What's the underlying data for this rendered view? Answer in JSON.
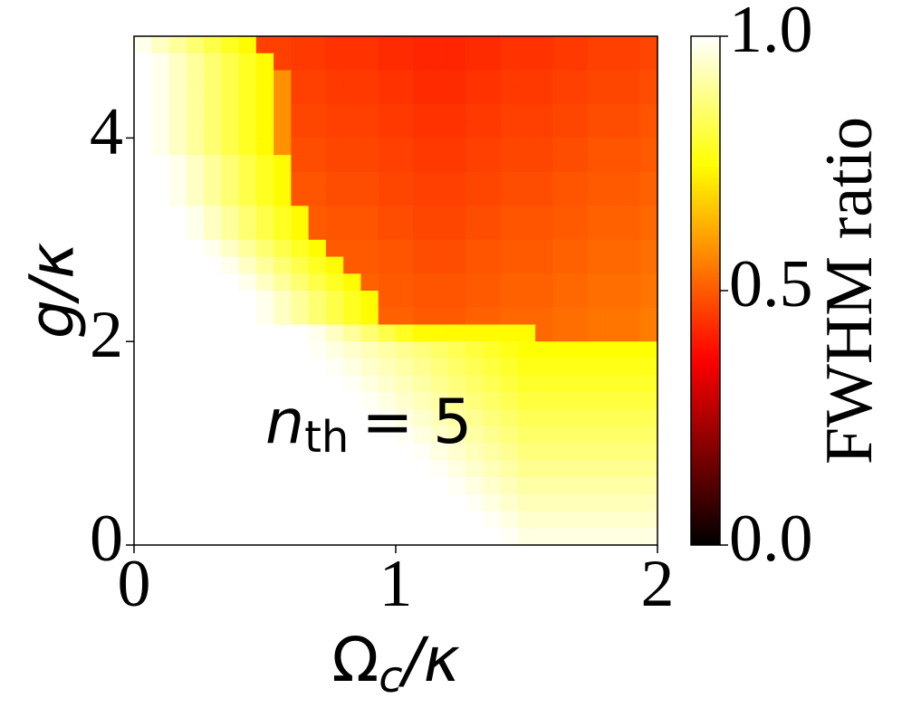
{
  "chart_data": {
    "type": "heatmap",
    "xlabel": {
      "symbol": "Ω",
      "subscript": "c",
      "rest": "/κ"
    },
    "ylabel": "g/κ",
    "annotation": {
      "symbol": "n",
      "subscript": "th",
      "rest": "= 5"
    },
    "colorbar_label": "FWHM ratio",
    "colormap": "hot",
    "xlim": [
      0,
      2
    ],
    "ylim": [
      0,
      5
    ],
    "xticks": [
      0,
      1,
      2
    ],
    "yticks": [
      0,
      2,
      4
    ],
    "clim": [
      0,
      1
    ],
    "cticks": [
      {
        "value": 0,
        "label": "0.0"
      },
      {
        "value": 0.5,
        "label": "0.5"
      },
      {
        "value": 1,
        "label": "1.0"
      }
    ],
    "z": [
      [
        0.98,
        0.94,
        0.9,
        0.86,
        0.82,
        0.78,
        0.74,
        0.46,
        0.46,
        0.45,
        0.45,
        0.44,
        0.44,
        0.44,
        0.43,
        0.43,
        0.42,
        0.42,
        0.42,
        0.43,
        0.43,
        0.44,
        0.44,
        0.44,
        0.45,
        0.45,
        0.46,
        0.46,
        0.46,
        0.47
      ],
      [
        1,
        0.98,
        0.94,
        0.9,
        0.86,
        0.82,
        0.78,
        0.74,
        0.46,
        0.45,
        0.45,
        0.44,
        0.44,
        0.44,
        0.43,
        0.43,
        0.42,
        0.42,
        0.42,
        0.43,
        0.43,
        0.44,
        0.44,
        0.44,
        0.45,
        0.45,
        0.46,
        0.46,
        0.46,
        0.47
      ],
      [
        1,
        0.98,
        0.94,
        0.9,
        0.86,
        0.82,
        0.78,
        0.74,
        0.58,
        0.46,
        0.46,
        0.45,
        0.45,
        0.45,
        0.44,
        0.44,
        0.43,
        0.43,
        0.43,
        0.44,
        0.44,
        0.45,
        0.45,
        0.45,
        0.46,
        0.46,
        0.47,
        0.47,
        0.47,
        0.48
      ],
      [
        1,
        0.98,
        0.94,
        0.9,
        0.86,
        0.82,
        0.78,
        0.74,
        0.58,
        0.46,
        0.46,
        0.45,
        0.45,
        0.45,
        0.44,
        0.44,
        0.43,
        0.43,
        0.43,
        0.44,
        0.44,
        0.45,
        0.45,
        0.45,
        0.46,
        0.46,
        0.47,
        0.47,
        0.47,
        0.48
      ],
      [
        1,
        0.98,
        0.94,
        0.9,
        0.86,
        0.82,
        0.78,
        0.74,
        0.58,
        0.47,
        0.47,
        0.46,
        0.46,
        0.46,
        0.45,
        0.45,
        0.44,
        0.44,
        0.44,
        0.45,
        0.45,
        0.46,
        0.46,
        0.46,
        0.47,
        0.47,
        0.48,
        0.48,
        0.48,
        0.49
      ],
      [
        1,
        0.98,
        0.94,
        0.9,
        0.86,
        0.82,
        0.78,
        0.74,
        0.58,
        0.47,
        0.47,
        0.46,
        0.46,
        0.46,
        0.45,
        0.45,
        0.44,
        0.44,
        0.44,
        0.45,
        0.45,
        0.46,
        0.46,
        0.46,
        0.47,
        0.47,
        0.48,
        0.48,
        0.48,
        0.49
      ],
      [
        1,
        0.98,
        0.94,
        0.9,
        0.86,
        0.82,
        0.78,
        0.74,
        0.58,
        0.48,
        0.48,
        0.47,
        0.47,
        0.47,
        0.46,
        0.46,
        0.45,
        0.45,
        0.45,
        0.46,
        0.46,
        0.47,
        0.47,
        0.47,
        0.48,
        0.48,
        0.49,
        0.49,
        0.49,
        0.5
      ],
      [
        1,
        1,
        0.98,
        0.94,
        0.9,
        0.86,
        0.82,
        0.78,
        0.74,
        0.48,
        0.48,
        0.47,
        0.47,
        0.47,
        0.46,
        0.46,
        0.45,
        0.45,
        0.45,
        0.46,
        0.46,
        0.47,
        0.47,
        0.47,
        0.48,
        0.48,
        0.49,
        0.49,
        0.49,
        0.5
      ],
      [
        1,
        1,
        0.98,
        0.94,
        0.9,
        0.86,
        0.82,
        0.78,
        0.74,
        0.49,
        0.49,
        0.48,
        0.48,
        0.48,
        0.47,
        0.47,
        0.46,
        0.46,
        0.46,
        0.47,
        0.47,
        0.48,
        0.48,
        0.48,
        0.49,
        0.49,
        0.5,
        0.5,
        0.5,
        0.51
      ],
      [
        1,
        1,
        0.98,
        0.94,
        0.9,
        0.86,
        0.82,
        0.78,
        0.74,
        0.49,
        0.49,
        0.48,
        0.48,
        0.48,
        0.47,
        0.47,
        0.46,
        0.46,
        0.46,
        0.47,
        0.47,
        0.48,
        0.48,
        0.48,
        0.49,
        0.49,
        0.5,
        0.5,
        0.5,
        0.51
      ],
      [
        1,
        1,
        1,
        0.98,
        0.94,
        0.9,
        0.86,
        0.82,
        0.78,
        0.74,
        0.5,
        0.49,
        0.49,
        0.49,
        0.48,
        0.48,
        0.47,
        0.47,
        0.47,
        0.48,
        0.48,
        0.49,
        0.49,
        0.49,
        0.5,
        0.5,
        0.51,
        0.51,
        0.51,
        0.52
      ],
      [
        1,
        1,
        1,
        0.98,
        0.94,
        0.9,
        0.86,
        0.82,
        0.78,
        0.74,
        0.5,
        0.49,
        0.49,
        0.49,
        0.48,
        0.48,
        0.47,
        0.47,
        0.47,
        0.48,
        0.48,
        0.49,
        0.49,
        0.49,
        0.5,
        0.5,
        0.51,
        0.51,
        0.51,
        0.52
      ],
      [
        1,
        1,
        1,
        1,
        0.98,
        0.94,
        0.9,
        0.86,
        0.82,
        0.78,
        0.74,
        0.5,
        0.5,
        0.5,
        0.49,
        0.49,
        0.48,
        0.48,
        0.48,
        0.49,
        0.49,
        0.5,
        0.5,
        0.5,
        0.51,
        0.51,
        0.52,
        0.52,
        0.52,
        0.53
      ],
      [
        1,
        1,
        1,
        1,
        1,
        0.98,
        0.94,
        0.9,
        0.86,
        0.82,
        0.78,
        0.74,
        0.5,
        0.5,
        0.49,
        0.49,
        0.48,
        0.48,
        0.48,
        0.49,
        0.49,
        0.5,
        0.5,
        0.5,
        0.51,
        0.51,
        0.52,
        0.52,
        0.52,
        0.53
      ],
      [
        1,
        1,
        1,
        1,
        1,
        1,
        0.98,
        0.94,
        0.9,
        0.86,
        0.82,
        0.78,
        0.74,
        0.51,
        0.5,
        0.5,
        0.49,
        0.49,
        0.49,
        0.5,
        0.5,
        0.51,
        0.51,
        0.51,
        0.52,
        0.52,
        0.53,
        0.53,
        0.53,
        0.54
      ],
      [
        1,
        1,
        1,
        1,
        1,
        1,
        1,
        0.98,
        0.94,
        0.9,
        0.86,
        0.82,
        0.78,
        0.74,
        0.5,
        0.5,
        0.49,
        0.49,
        0.49,
        0.5,
        0.5,
        0.51,
        0.51,
        0.51,
        0.52,
        0.52,
        0.53,
        0.53,
        0.53,
        0.54
      ],
      [
        1,
        1,
        1,
        1,
        1,
        1,
        1,
        0.98,
        0.94,
        0.9,
        0.86,
        0.82,
        0.78,
        0.74,
        0.51,
        0.51,
        0.5,
        0.5,
        0.5,
        0.51,
        0.51,
        0.52,
        0.52,
        0.52,
        0.53,
        0.53,
        0.54,
        0.54,
        0.54,
        0.55
      ],
      [
        1,
        1,
        1,
        1,
        1,
        1,
        1,
        1,
        1,
        1,
        0.98,
        0.94,
        0.9,
        0.86,
        0.82,
        0.78,
        0.74,
        0.74,
        0.74,
        0.74,
        0.74,
        0.74,
        0.74,
        0.52,
        0.53,
        0.53,
        0.54,
        0.54,
        0.54,
        0.55
      ],
      [
        1,
        1,
        1,
        1,
        1,
        1,
        1,
        1,
        1,
        1,
        0.99,
        0.97,
        0.95,
        0.93,
        0.91,
        0.89,
        0.87,
        0.85,
        0.83,
        0.81,
        0.79,
        0.77,
        0.75,
        0.75,
        0.75,
        0.75,
        0.75,
        0.75,
        0.75,
        0.75
      ],
      [
        1,
        1,
        1,
        1,
        1,
        1,
        1,
        1,
        1,
        1,
        1,
        0.99,
        0.97,
        0.95,
        0.93,
        0.91,
        0.89,
        0.87,
        0.85,
        0.83,
        0.81,
        0.79,
        0.77,
        0.77,
        0.77,
        0.77,
        0.77,
        0.77,
        0.77,
        0.77
      ],
      [
        1,
        1,
        1,
        1,
        1,
        1,
        1,
        1,
        1,
        1,
        1,
        1,
        0.99,
        0.97,
        0.95,
        0.93,
        0.91,
        0.89,
        0.87,
        0.85,
        0.83,
        0.81,
        0.79,
        0.79,
        0.79,
        0.79,
        0.79,
        0.79,
        0.79,
        0.79
      ],
      [
        1,
        1,
        1,
        1,
        1,
        1,
        1,
        1,
        1,
        1,
        1,
        1,
        1,
        0.99,
        0.97,
        0.95,
        0.93,
        0.91,
        0.89,
        0.87,
        0.85,
        0.83,
        0.81,
        0.81,
        0.81,
        0.81,
        0.81,
        0.81,
        0.81,
        0.81
      ],
      [
        1,
        1,
        1,
        1,
        1,
        1,
        1,
        1,
        1,
        1,
        1,
        1,
        1,
        1,
        0.99,
        0.97,
        0.95,
        0.93,
        0.91,
        0.89,
        0.87,
        0.85,
        0.83,
        0.83,
        0.83,
        0.83,
        0.83,
        0.83,
        0.83,
        0.83
      ],
      [
        1,
        1,
        1,
        1,
        1,
        1,
        1,
        1,
        1,
        1,
        1,
        1,
        1,
        1,
        1,
        0.99,
        0.97,
        0.95,
        0.93,
        0.91,
        0.89,
        0.87,
        0.85,
        0.85,
        0.85,
        0.85,
        0.85,
        0.85,
        0.85,
        0.85
      ],
      [
        1,
        1,
        1,
        1,
        1,
        1,
        1,
        1,
        1,
        1,
        1,
        1,
        1,
        1,
        1,
        1,
        0.99,
        0.97,
        0.95,
        0.93,
        0.91,
        0.89,
        0.87,
        0.87,
        0.87,
        0.87,
        0.87,
        0.87,
        0.87,
        0.87
      ],
      [
        1,
        1,
        1,
        1,
        1,
        1,
        1,
        1,
        1,
        1,
        1,
        1,
        1,
        1,
        1,
        1,
        1,
        0.99,
        0.97,
        0.95,
        0.93,
        0.91,
        0.89,
        0.89,
        0.89,
        0.89,
        0.89,
        0.89,
        0.89,
        0.89
      ],
      [
        1,
        1,
        1,
        1,
        1,
        1,
        1,
        1,
        1,
        1,
        1,
        1,
        1,
        1,
        1,
        1,
        1,
        1,
        0.99,
        0.97,
        0.95,
        0.93,
        0.91,
        0.91,
        0.91,
        0.91,
        0.91,
        0.91,
        0.91,
        0.91
      ],
      [
        1,
        1,
        1,
        1,
        1,
        1,
        1,
        1,
        1,
        1,
        1,
        1,
        1,
        1,
        1,
        1,
        1,
        1,
        1,
        0.99,
        0.97,
        0.95,
        0.93,
        0.93,
        0.93,
        0.93,
        0.93,
        0.93,
        0.93,
        0.93
      ],
      [
        1,
        1,
        1,
        1,
        1,
        1,
        1,
        1,
        1,
        1,
        1,
        1,
        1,
        1,
        1,
        1,
        1,
        1,
        1,
        1,
        0.99,
        0.97,
        0.95,
        0.95,
        0.95,
        0.95,
        0.95,
        0.95,
        0.95,
        0.95
      ],
      [
        1,
        1,
        1,
        1,
        1,
        1,
        1,
        1,
        1,
        1,
        1,
        1,
        1,
        1,
        1,
        1,
        1,
        1,
        1,
        1,
        1,
        0.99,
        0.97,
        0.97,
        0.97,
        0.97,
        0.97,
        0.97,
        0.97,
        0.97
      ]
    ]
  }
}
